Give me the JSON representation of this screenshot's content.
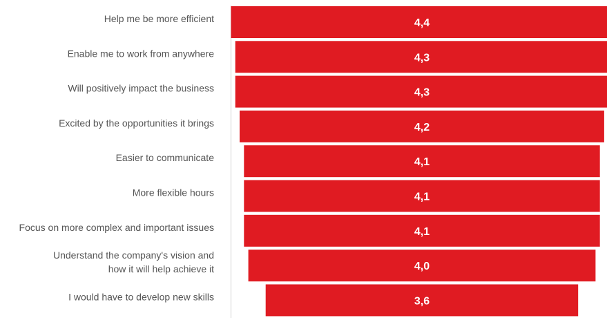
{
  "chart_data": {
    "type": "bar",
    "orientation": "horizontal",
    "layout": "funnel (bars centered)",
    "categories": [
      [
        "Help me be more efficient"
      ],
      [
        "Enable me to work from anywhere"
      ],
      [
        "Will positively impact the business"
      ],
      [
        "Excited by the opportunities it brings"
      ],
      [
        "Easier to communicate"
      ],
      [
        "More flexible hours"
      ],
      [
        "Focus on more complex and important issues"
      ],
      [
        "Understand the company's vision and",
        "how it will help achieve it"
      ],
      [
        "I would have to develop new skills"
      ]
    ],
    "values": [
      4.4,
      4.3,
      4.3,
      4.2,
      4.1,
      4.1,
      4.1,
      4.0,
      3.6
    ],
    "value_labels": [
      "4,4",
      "4,3",
      "4,3",
      "4,2",
      "4,1",
      "4,1",
      "4,1",
      "4,0",
      "3,6"
    ],
    "bar_color": "#e01b22",
    "label_color": "#555555",
    "axis_line_color": "#d0d0d0",
    "title": "",
    "xlabel": "",
    "ylabel": "",
    "grid": false,
    "legend": "none"
  }
}
